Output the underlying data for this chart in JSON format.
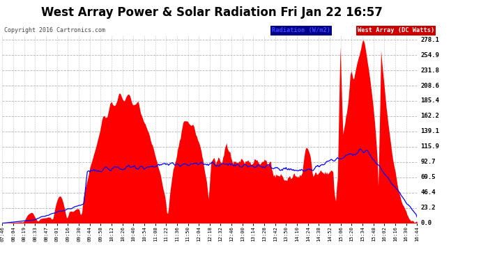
{
  "title": "West Array Power & Solar Radiation Fri Jan 22 16:57",
  "copyright": "Copyright 2016 Cartronics.com",
  "legend_radiation": "Radiation (W/m2)",
  "legend_west": "West Array (DC Watts)",
  "background_color": "#ffffff",
  "plot_bg_color": "#ffffff",
  "grid_color": "#aaaaaa",
  "red_fill_color": "#ff0000",
  "blue_line_color": "#0000ff",
  "title_fontsize": 12,
  "ytick_labels": [
    "0.0",
    "23.2",
    "46.4",
    "69.5",
    "92.7",
    "115.9",
    "139.1",
    "162.2",
    "185.4",
    "208.6",
    "231.8",
    "254.9",
    "278.1"
  ],
  "ytick_values": [
    0.0,
    23.2,
    46.4,
    69.5,
    92.7,
    115.9,
    139.1,
    162.2,
    185.4,
    208.6,
    231.8,
    254.9,
    278.1
  ],
  "ymax": 285,
  "xtick_labels": [
    "07:46",
    "08:04",
    "08:19",
    "08:33",
    "08:47",
    "09:01",
    "09:16",
    "09:30",
    "09:44",
    "09:58",
    "10:12",
    "10:26",
    "10:40",
    "10:54",
    "11:08",
    "11:22",
    "11:36",
    "11:50",
    "12:04",
    "12:18",
    "12:32",
    "12:46",
    "13:00",
    "13:14",
    "13:28",
    "13:42",
    "13:50",
    "14:10",
    "14:24",
    "14:38",
    "14:52",
    "15:06",
    "15:20",
    "15:34",
    "15:48",
    "16:02",
    "16:16",
    "16:30",
    "16:44"
  ]
}
